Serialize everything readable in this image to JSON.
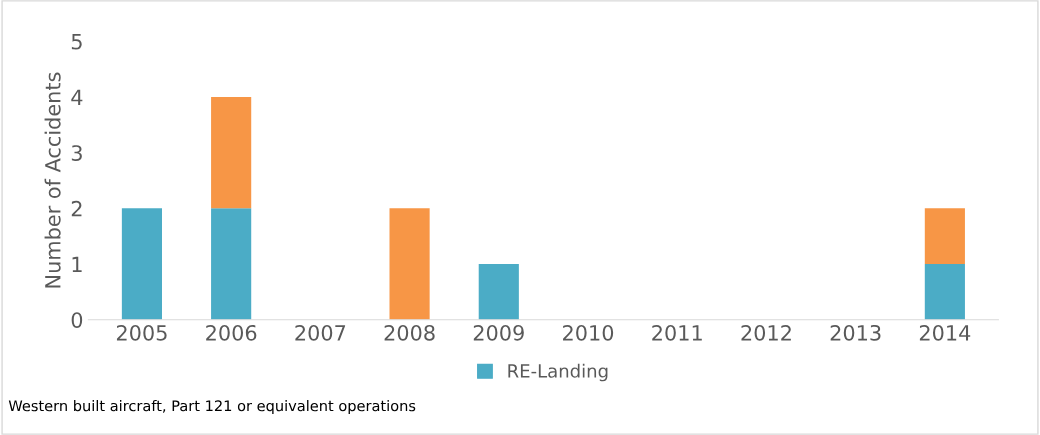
{
  "chart_data": {
    "type": "bar",
    "stacked": true,
    "ylabel": "Number of Accidents",
    "categories": [
      "2005",
      "2006",
      "2007",
      "2008",
      "2009",
      "2010",
      "2011",
      "2012",
      "2013",
      "2014"
    ],
    "series": [
      {
        "name": "RE-Landing",
        "color": "#4bacc6",
        "values": [
          2,
          2,
          null,
          null,
          1,
          null,
          null,
          null,
          null,
          1
        ]
      },
      {
        "color": "#f79646",
        "values": [
          null,
          2,
          null,
          2,
          null,
          null,
          null,
          null,
          null,
          1
        ]
      }
    ],
    "ylim": [
      0,
      5
    ],
    "yticks": [
      0,
      1,
      2,
      3,
      4,
      5
    ],
    "grid": false,
    "legend": "bottom",
    "annotations": [
      "Western built aircraft, Part 121 or equivalent operations"
    ]
  }
}
